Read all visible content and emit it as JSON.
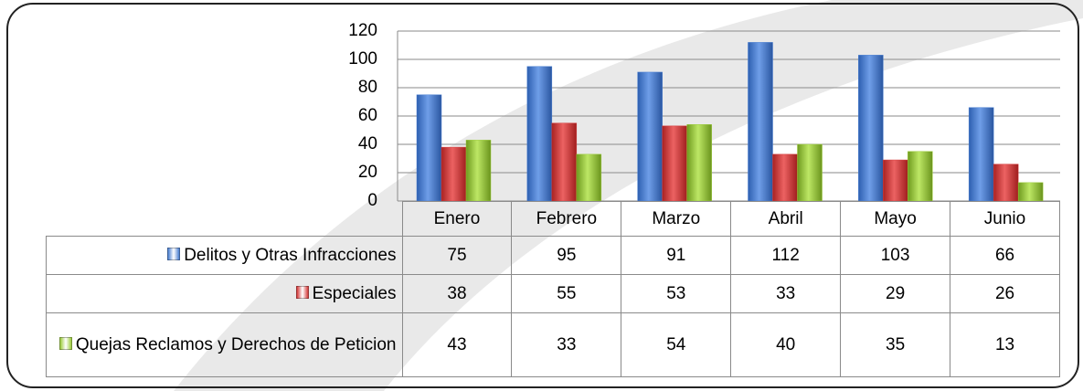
{
  "chart_data": {
    "type": "bar",
    "categories": [
      "Enero",
      "Febrero",
      "Marzo",
      "Abril",
      "Mayo",
      "Junio"
    ],
    "series": [
      {
        "name": "Delitos y Otras Infracciones",
        "color": "#4a7fd1",
        "values": [
          75,
          95,
          91,
          112,
          103,
          66
        ]
      },
      {
        "name": "Especiales",
        "color": "#d43b3b",
        "values": [
          38,
          55,
          53,
          33,
          29,
          26
        ]
      },
      {
        "name": "Quejas Reclamos y Derechos de Peticion",
        "color": "#9ccc3c",
        "values": [
          43,
          33,
          54,
          40,
          35,
          13
        ]
      }
    ],
    "ylim": [
      0,
      120
    ],
    "yticks": [
      0,
      20,
      40,
      60,
      80,
      100,
      120
    ],
    "grid": true,
    "data_table": true
  }
}
